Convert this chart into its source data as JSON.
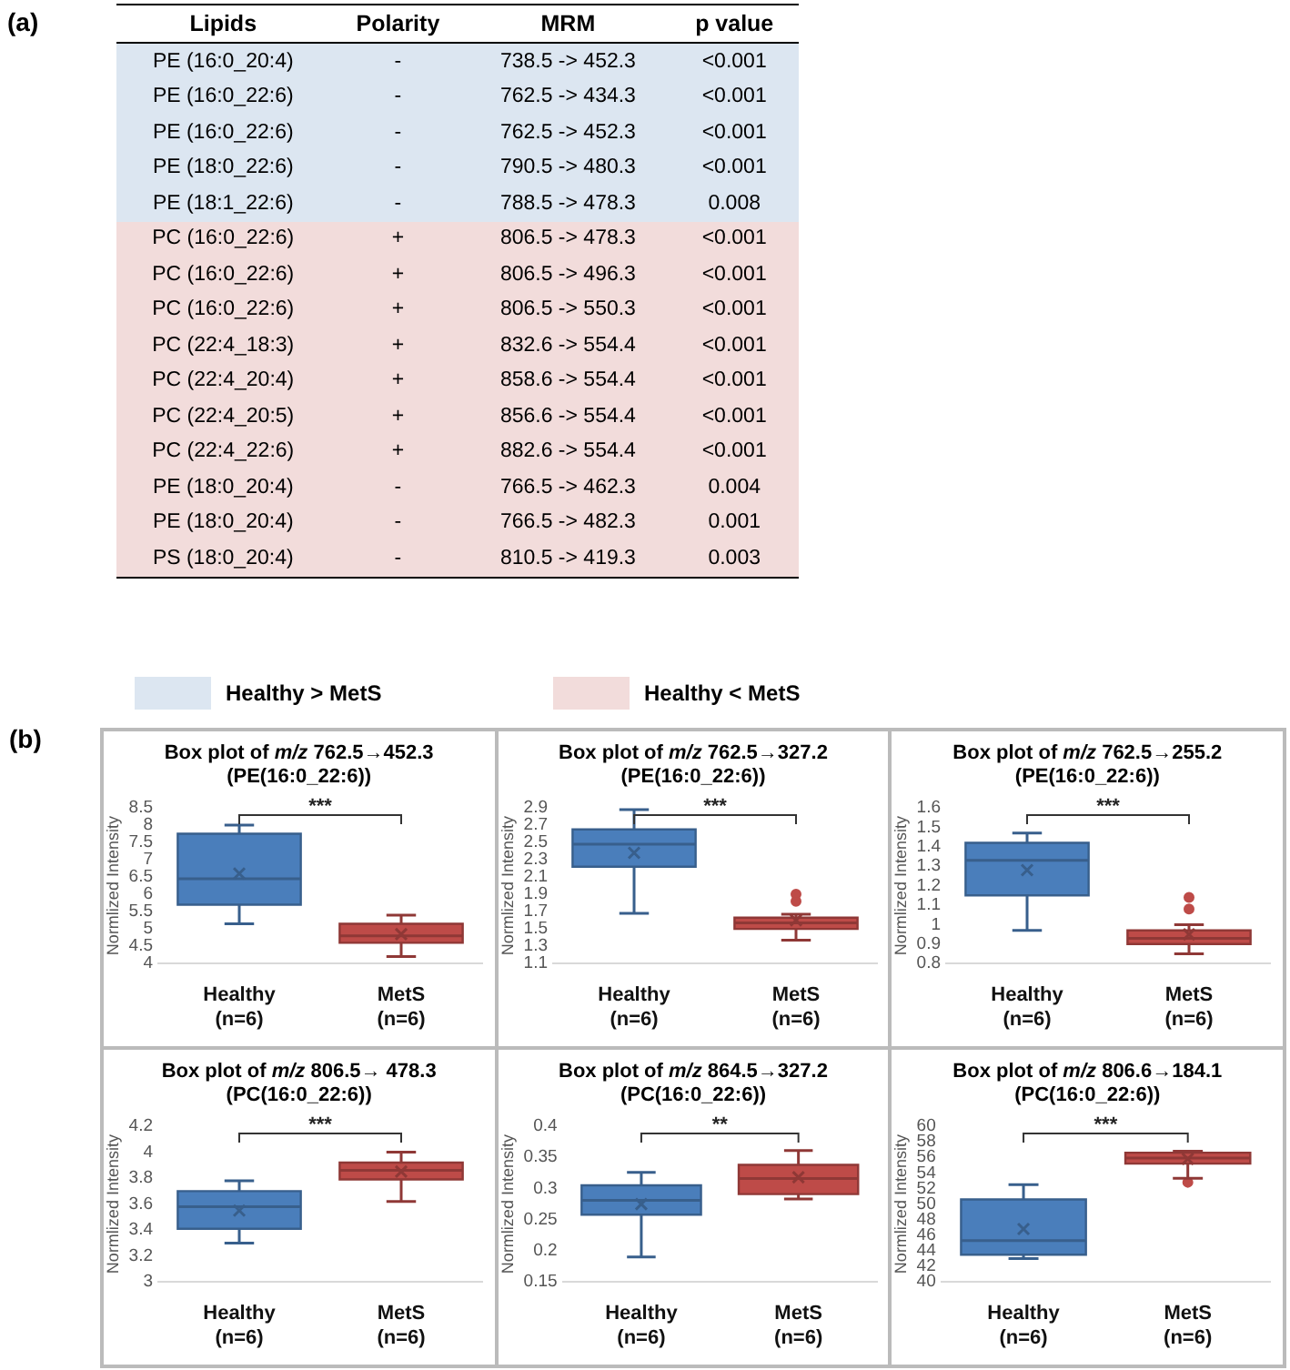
{
  "chart_data": [
    {
      "type": "other",
      "title": "(a)",
      "categories": [
        "Lipids",
        "Polarity",
        "MRM",
        "p value"
      ],
      "annotations": [
        "PE (16:0_20:4)",
        "-",
        "738.5 -> 452.3",
        "<0.001",
        "PE (16:0_22:6)",
        "-",
        "762.5 -> 434.3",
        "<0.001",
        "PE (16:0_22:6)",
        "-",
        "762.5 -> 452.3",
        "<0.001",
        "PE (18:0_22:6)",
        "-",
        "790.5 -> 480.3",
        "<0.001",
        "PE (18:1_22:6)",
        "-",
        "788.5 -> 478.3",
        "0.008",
        "PC (16:0_22:6)",
        "+",
        "806.5 -> 478.3",
        "<0.001",
        "PC (16:0_22:6)",
        "+",
        "806.5 -> 496.3",
        "<0.001",
        "PC (16:0_22:6)",
        "+",
        "806.5 -> 550.3",
        "<0.001",
        "PC (22:4_18:3)",
        "+",
        "832.6 -> 554.4",
        "<0.001",
        "PC (22:4_20:4)",
        "+",
        "858.6 -> 554.4",
        "<0.001",
        "PC (22:4_20:5)",
        "+",
        "856.6 -> 554.4",
        "<0.001",
        "PC (22:4_22:6)",
        "+",
        "882.6 -> 554.4",
        "<0.001",
        "PE (18:0_20:4)",
        "-",
        "766.5 -> 462.3",
        "0.004",
        "PE (18:0_20:4)",
        "-",
        "766.5 -> 482.3",
        "0.001",
        "PS (18:0_20:4)",
        "-",
        "810.5 -> 419.3",
        "0.003",
        "Healthy > MetS",
        "Healthy < MetS"
      ],
      "colors": [
        "#dce6f1",
        "#dce6f1",
        "#dce6f1",
        "#dce6f1",
        "#dce6f1",
        "#f2dcdb",
        "#f2dcdb",
        "#f2dcdb",
        "#f2dcdb",
        "#f2dcdb",
        "#f2dcdb",
        "#f2dcdb",
        "#f2dcdb",
        "#f2dcdb",
        "#f2dcdb",
        "#dce6f1",
        "#f2dcdb"
      ]
    },
    {
      "type": "box",
      "title": "Box plot of m/z 762.5→452.3",
      "subtitle": "(PE(16:0_22:6))",
      "ylabel": "Normlized Intensity",
      "categories": [
        "Healthy (n=6)",
        "MetS (n=6)"
      ],
      "colors": [
        "#4a7ebb",
        "#be4b48"
      ],
      "ylim": [
        4,
        8.5
      ],
      "yticks": [
        4,
        4.5,
        5,
        5.5,
        6,
        6.5,
        7,
        7.5,
        8,
        8.5
      ],
      "annotations": [
        "(b)",
        "***"
      ],
      "boxes": [
        {
          "low": 5.15,
          "q1": 5.7,
          "median": 6.45,
          "q3": 7.75,
          "high": 8.0,
          "mean": 6.6
        },
        {
          "low": 4.2,
          "q1": 4.6,
          "median": 4.8,
          "q3": 5.15,
          "high": 5.4,
          "mean": 4.85
        }
      ]
    },
    {
      "type": "box",
      "title": "Box plot of m/z 762.5→327.2",
      "subtitle": "(PE(16:0_22:6))",
      "ylabel": "Normlized Intensity",
      "categories": [
        "Healthy (n=6)",
        "MetS (n=6)"
      ],
      "colors": [
        "#4a7ebb",
        "#be4b48"
      ],
      "ylim": [
        1.1,
        2.9
      ],
      "yticks": [
        1.1,
        1.3,
        1.5,
        1.7,
        1.9,
        2.1,
        2.3,
        2.5,
        2.7,
        2.9
      ],
      "annotations": [
        "***"
      ],
      "boxes": [
        {
          "low": 1.68,
          "q1": 2.22,
          "median": 2.48,
          "q3": 2.65,
          "high": 2.88,
          "mean": 2.38
        },
        {
          "low": 1.37,
          "q1": 1.5,
          "median": 1.57,
          "q3": 1.63,
          "high": 1.67,
          "mean": 1.6,
          "outliers": [
            1.82,
            1.9
          ]
        }
      ]
    },
    {
      "type": "box",
      "title": "Box plot of m/z 762.5→255.2",
      "subtitle": "(PE(16:0_22:6))",
      "ylabel": "Normlized Intensity",
      "categories": [
        "Healthy (n=6)",
        "MetS (n=6)"
      ],
      "colors": [
        "#4a7ebb",
        "#be4b48"
      ],
      "ylim": [
        0.8,
        1.6
      ],
      "yticks": [
        0.8,
        0.9,
        1,
        1.1,
        1.2,
        1.3,
        1.4,
        1.5,
        1.6
      ],
      "annotations": [
        "***"
      ],
      "boxes": [
        {
          "low": 0.97,
          "q1": 1.15,
          "median": 1.33,
          "q3": 1.42,
          "high": 1.47,
          "mean": 1.28
        },
        {
          "low": 0.85,
          "q1": 0.9,
          "median": 0.93,
          "q3": 0.97,
          "high": 1.0,
          "mean": 0.95,
          "outliers": [
            1.08,
            1.14
          ]
        }
      ]
    },
    {
      "type": "box",
      "title": "Box plot of m/z 806.5→ 478.3",
      "subtitle": "(PC(16:0_22:6))",
      "ylabel": "Normlized Intensity",
      "categories": [
        "Healthy (n=6)",
        "MetS (n=6)"
      ],
      "colors": [
        "#4a7ebb",
        "#be4b48"
      ],
      "ylim": [
        3,
        4.2
      ],
      "yticks": [
        3,
        3.2,
        3.4,
        3.6,
        3.8,
        4,
        4.2
      ],
      "annotations": [
        "***"
      ],
      "boxes": [
        {
          "low": 3.3,
          "q1": 3.41,
          "median": 3.58,
          "q3": 3.7,
          "high": 3.78,
          "mean": 3.55
        },
        {
          "low": 3.62,
          "q1": 3.79,
          "median": 3.86,
          "q3": 3.92,
          "high": 4.0,
          "mean": 3.85
        }
      ]
    },
    {
      "type": "box",
      "title": "Box plot of m/z 864.5→327.2",
      "subtitle": "(PC(16:0_22:6))",
      "ylabel": "Normlized Intensity",
      "categories": [
        "Healthy (n=6)",
        "MetS (n=6)"
      ],
      "colors": [
        "#4a7ebb",
        "#be4b48"
      ],
      "ylim": [
        0.15,
        0.4
      ],
      "yticks": [
        0.15,
        0.2,
        0.25,
        0.3,
        0.35,
        0.4
      ],
      "annotations": [
        "**"
      ],
      "boxes": [
        {
          "low": 0.19,
          "q1": 0.258,
          "median": 0.281,
          "q3": 0.305,
          "high": 0.326,
          "mean": 0.275
        },
        {
          "low": 0.283,
          "q1": 0.291,
          "median": 0.316,
          "q3": 0.338,
          "high": 0.361,
          "mean": 0.318
        }
      ]
    },
    {
      "type": "box",
      "title": "Box plot of m/z 806.6→184.1",
      "subtitle": "(PC(16:0_22:6))",
      "ylabel": "Normlized Intensity",
      "categories": [
        "Healthy (n=6)",
        "MetS (n=6)"
      ],
      "colors": [
        "#4a7ebb",
        "#be4b48"
      ],
      "ylim": [
        40,
        60
      ],
      "yticks": [
        40,
        42,
        44,
        46,
        48,
        50,
        52,
        54,
        56,
        58,
        60
      ],
      "annotations": [
        "***"
      ],
      "boxes": [
        {
          "low": 43,
          "q1": 43.5,
          "median": 45.3,
          "q3": 50.6,
          "high": 52.5,
          "mean": 46.8
        },
        {
          "low": 53.3,
          "q1": 55.2,
          "median": 55.9,
          "q3": 56.6,
          "high": 56.8,
          "mean": 55.8,
          "outliers": [
            52.8
          ]
        }
      ]
    }
  ]
}
